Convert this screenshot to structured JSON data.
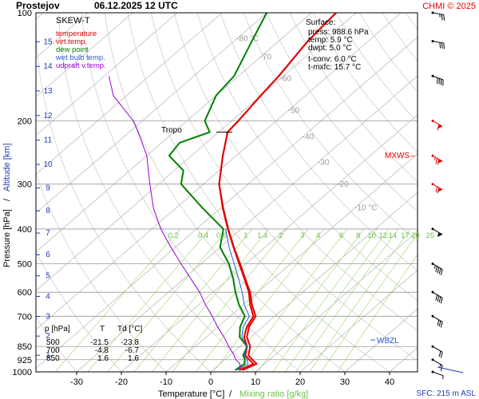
{
  "header": {
    "station": "Prostejov",
    "datetime": "06.12.2025 12 UTC",
    "credit": "CHMI © 2025",
    "diagram_label": "SKEW-T"
  },
  "legend": [
    {
      "label": "temperature",
      "color": "#e00000"
    },
    {
      "label": "virt.temp.",
      "color": "#e00000"
    },
    {
      "label": "dew point",
      "color": "#008000"
    },
    {
      "label": "wet bulb temp.",
      "color": "#2e5bd8"
    },
    {
      "label": "udpraft v.temp.",
      "color": "#9900cc"
    }
  ],
  "surface": {
    "title": "Surface:",
    "lines": [
      {
        "text": "press: 988.6 hPa",
        "color": "#000000"
      },
      {
        "text": "temp: 5.9 °C",
        "color": "#e00000"
      },
      {
        "text": "dwpt: 5.0 °C",
        "color": "#008000"
      }
    ],
    "extra": [
      "t-conv: 6.0 °C",
      "t-mxfc: 15.7 °C"
    ]
  },
  "table": {
    "headers": [
      "p [hPa]",
      "T",
      "Td [°C]"
    ],
    "rows": [
      [
        "500",
        "-21.5",
        "-23.8"
      ],
      [
        "700",
        "-4.8",
        "-6.7"
      ],
      [
        "850",
        "1.6",
        "1.6"
      ]
    ]
  },
  "markers": {
    "tropo": "Tropo",
    "mxws": "MXWS",
    "wbzl": "WBZL"
  },
  "footer": {
    "sfc": "SFC: 215 m ASL"
  },
  "chart_data": {
    "type": "line",
    "title": "SKEW-T",
    "xlabel": "Temperature [°C]",
    "xlabel_secondary": "Mixing ratio [g/kg]",
    "ylabel": "Pressure [hPa]",
    "ylabel_secondary": "Altitude [km]",
    "xlim": [
      -35,
      45
    ],
    "ylim": [
      1000,
      100
    ],
    "yscale": "log",
    "x_ticks": [
      -30,
      -20,
      -10,
      0,
      10,
      20,
      30,
      40
    ],
    "y_ticks": [
      100,
      200,
      300,
      400,
      500,
      600,
      700,
      850,
      925,
      1000
    ],
    "altitude_ticks_km": [
      1,
      2,
      3,
      4,
      5,
      6,
      7,
      8,
      9,
      10,
      11,
      12,
      13,
      14,
      15
    ],
    "isotherm_labels": [
      "-80 °C",
      "-70",
      "-60",
      "-50",
      "-40",
      "-30",
      "-20",
      "-10 °C"
    ],
    "mixing_ratio_labels": [
      "0.2",
      "0.4",
      "0.6",
      "1",
      "1.4",
      "2",
      "3",
      "4",
      "6",
      "8",
      "10",
      "12",
      "14",
      "17",
      "20",
      "25"
    ],
    "series": [
      {
        "name": "temperature",
        "color": "#e00000",
        "points": [
          [
            5.9,
            988.6
          ],
          [
            7.5,
            950
          ],
          [
            5.5,
            925
          ],
          [
            3.5,
            900
          ],
          [
            1.6,
            850
          ],
          [
            -1.5,
            800
          ],
          [
            -3.5,
            750
          ],
          [
            -4.8,
            700
          ],
          [
            -8.5,
            650
          ],
          [
            -12,
            600
          ],
          [
            -16.5,
            550
          ],
          [
            -21.5,
            500
          ],
          [
            -27,
            450
          ],
          [
            -33,
            400
          ],
          [
            -39.5,
            350
          ],
          [
            -46.5,
            300
          ],
          [
            -53,
            250
          ],
          [
            -58,
            215
          ],
          [
            -58.5,
            200
          ],
          [
            -60,
            170
          ],
          [
            -61,
            150
          ],
          [
            -63.5,
            120
          ],
          [
            -64.5,
            100
          ]
        ]
      },
      {
        "name": "virt.temp.",
        "color": "#e00000",
        "points": [
          [
            6.6,
            988.6
          ],
          [
            8.2,
            950
          ],
          [
            6.2,
            925
          ],
          [
            4.2,
            900
          ],
          [
            2.3,
            850
          ],
          [
            -0.9,
            800
          ],
          [
            -3.0,
            750
          ],
          [
            -4.3,
            700
          ],
          [
            -8.1,
            650
          ],
          [
            -11.7,
            600
          ],
          [
            -16.3,
            550
          ],
          [
            -21.3,
            500
          ],
          [
            -26.9,
            450
          ],
          [
            -32.9,
            400
          ],
          [
            -39.4,
            350
          ],
          [
            -46.5,
            300
          ],
          [
            -53,
            250
          ],
          [
            -58,
            215
          ],
          [
            -58.5,
            200
          ],
          [
            -60,
            170
          ],
          [
            -61,
            150
          ],
          [
            -63.5,
            120
          ],
          [
            -64.5,
            100
          ]
        ]
      },
      {
        "name": "dew point",
        "color": "#008000",
        "points": [
          [
            5.0,
            988.6
          ],
          [
            5.5,
            950
          ],
          [
            4.5,
            925
          ],
          [
            3.0,
            900
          ],
          [
            1.6,
            850
          ],
          [
            -2.5,
            800
          ],
          [
            -5,
            750
          ],
          [
            -6.7,
            700
          ],
          [
            -11,
            650
          ],
          [
            -15,
            600
          ],
          [
            -19,
            550
          ],
          [
            -23.8,
            500
          ],
          [
            -30,
            450
          ],
          [
            -34,
            400
          ],
          [
            -44,
            350
          ],
          [
            -55,
            300
          ],
          [
            -58,
            275
          ],
          [
            -65,
            250
          ],
          [
            -66,
            230
          ],
          [
            -62,
            215
          ],
          [
            -66,
            200
          ],
          [
            -70,
            170
          ],
          [
            -71,
            150
          ],
          [
            -76,
            120
          ],
          [
            -80,
            100
          ]
        ]
      },
      {
        "name": "wet bulb temp.",
        "color": "#2e5bd8",
        "points": [
          [
            5.4,
            988.6
          ],
          [
            6.3,
            950
          ],
          [
            5.0,
            925
          ],
          [
            3.2,
            900
          ],
          [
            1.6,
            850
          ],
          [
            -2.0,
            800
          ],
          [
            -4.3,
            750
          ],
          [
            -5.7,
            700
          ],
          [
            -9.8,
            650
          ],
          [
            -13.5,
            600
          ],
          [
            -17.8,
            550
          ],
          [
            -22.6,
            500
          ],
          [
            -28,
            450
          ],
          [
            -33.5,
            400
          ]
        ]
      },
      {
        "name": "udpraft v.temp.",
        "color": "#9900cc",
        "points": [
          [
            6.0,
            988.6
          ],
          [
            4.5,
            950
          ],
          [
            2.5,
            925
          ],
          [
            1.0,
            900
          ],
          [
            -2.5,
            850
          ],
          [
            -6,
            800
          ],
          [
            -10,
            750
          ],
          [
            -14,
            700
          ],
          [
            -18.5,
            650
          ],
          [
            -23,
            600
          ],
          [
            -28.5,
            550
          ],
          [
            -34.5,
            500
          ],
          [
            -41,
            450
          ],
          [
            -48,
            400
          ],
          [
            -55,
            350
          ],
          [
            -62,
            300
          ],
          [
            -70,
            250
          ],
          [
            -78,
            215
          ],
          [
            -82,
            200
          ],
          [
            -93,
            170
          ],
          [
            -99,
            150
          ]
        ]
      }
    ],
    "wind_barbs": [
      {
        "p": 1000,
        "dir": 290,
        "speed": 5
      },
      {
        "p": 925,
        "dir": 300,
        "speed": 15
      },
      {
        "p": 850,
        "dir": 300,
        "speed": 20
      },
      {
        "p": 700,
        "dir": 300,
        "speed": 30
      },
      {
        "p": 600,
        "dir": 300,
        "speed": 40
      },
      {
        "p": 500,
        "dir": 300,
        "speed": 45
      },
      {
        "p": 400,
        "dir": 300,
        "speed": 55
      },
      {
        "p": 300,
        "dir": 300,
        "speed": 70
      },
      {
        "p": 250,
        "dir": 300,
        "speed": 75
      },
      {
        "p": 200,
        "dir": 300,
        "speed": 60
      },
      {
        "p": 150,
        "dir": 290,
        "speed": 40
      },
      {
        "p": 120,
        "dir": 280,
        "speed": 30
      },
      {
        "p": 100,
        "dir": 280,
        "speed": 25
      }
    ]
  }
}
